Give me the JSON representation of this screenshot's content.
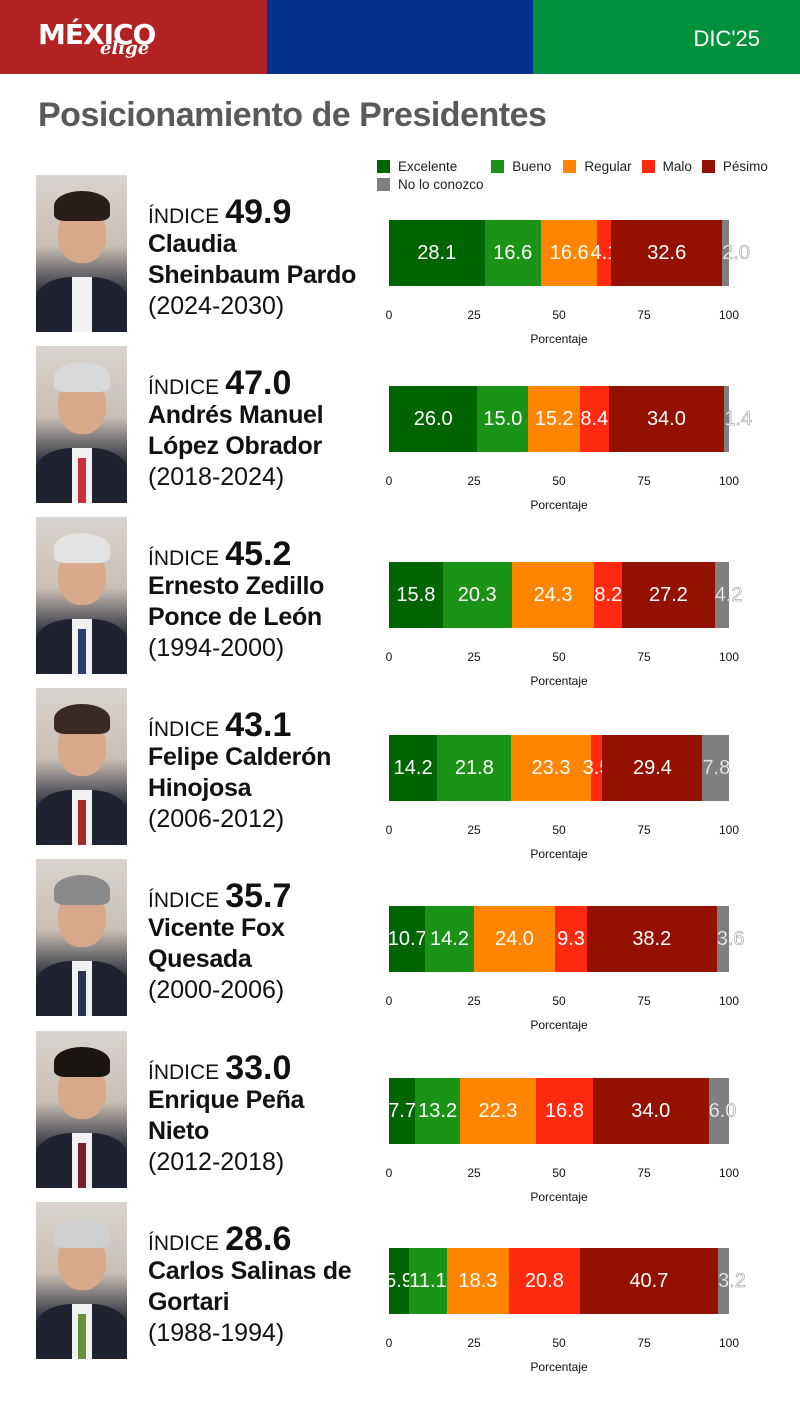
{
  "header": {
    "logo_main": "MÉXICO",
    "logo_sub": "elige",
    "date": "DIC'25",
    "colors": {
      "red": "#b22222",
      "blue": "#06328f",
      "green": "#00913f"
    }
  },
  "page_title": "Posicionamiento de Presidentes",
  "legend": [
    {
      "label": "Excelente",
      "color": "#006400"
    },
    {
      "label": "Bueno",
      "color": "#1a9317"
    },
    {
      "label": "Regular",
      "color": "#ff8400"
    },
    {
      "label": "Malo",
      "color": "#ff2a0f"
    },
    {
      "label": "Pésimo",
      "color": "#941100"
    },
    {
      "label": "No lo conozco",
      "color": "#7f7f7f"
    }
  ],
  "index_label": "ÍNDICE",
  "axis": {
    "ticks": [
      "0",
      "25",
      "50",
      "75",
      "100"
    ],
    "title": "Porcentaje"
  },
  "presidents": [
    {
      "index": "49.9",
      "name_line1": "Claudia",
      "name_line2": "Sheinbaum Pardo",
      "period": "(2024-2030)",
      "values": [
        28.1,
        16.6,
        16.6,
        4.1,
        32.6,
        2.0
      ]
    },
    {
      "index": "47.0",
      "name_line1": "Andrés Manuel",
      "name_line2": "López Obrador",
      "period": "(2018-2024)",
      "values": [
        26.0,
        15.0,
        15.2,
        8.4,
        34.0,
        1.4
      ]
    },
    {
      "index": "45.2",
      "name_line1": "Ernesto Zedillo",
      "name_line2": "Ponce de León",
      "period": "(1994-2000)",
      "values": [
        15.8,
        20.3,
        24.3,
        8.2,
        27.2,
        4.2
      ]
    },
    {
      "index": "43.1",
      "name_line1": "Felipe Calderón",
      "name_line2": "Hinojosa",
      "period": "(2006-2012)",
      "values": [
        14.2,
        21.8,
        23.3,
        3.5,
        29.4,
        7.8
      ]
    },
    {
      "index": "35.7",
      "name_line1": "Vicente Fox",
      "name_line2": "Quesada",
      "period": "(2000-2006)",
      "values": [
        10.7,
        14.2,
        24.0,
        9.3,
        38.2,
        3.6
      ]
    },
    {
      "index": "33.0",
      "name_line1": "Enrique Peña",
      "name_line2": "Nieto",
      "period": "(2012-2018)",
      "values": [
        7.7,
        13.2,
        22.3,
        16.8,
        34.0,
        6.0
      ]
    },
    {
      "index": "28.6",
      "name_line1": "Carlos Salinas de",
      "name_line2": "Gortari",
      "period": "(1988-1994)",
      "values": [
        5.9,
        11.1,
        18.3,
        20.8,
        40.7,
        3.2
      ]
    }
  ],
  "chart_data": {
    "type": "bar",
    "orientation": "horizontal-stacked-100",
    "title": "Posicionamiento de Presidentes",
    "subtitle": "DIC'25",
    "categories": [
      "Claudia Sheinbaum Pardo (2024-2030)",
      "Andrés Manuel López Obrador (2018-2024)",
      "Ernesto Zedillo Ponce de León (1994-2000)",
      "Felipe Calderón Hinojosa (2006-2012)",
      "Vicente Fox Quesada (2000-2006)",
      "Enrique Peña Nieto (2012-2018)",
      "Carlos Salinas de Gortari (1988-1994)"
    ],
    "index": [
      49.9,
      47.0,
      45.2,
      43.1,
      35.7,
      33.0,
      28.6
    ],
    "series": [
      {
        "name": "Excelente",
        "color": "#006400",
        "values": [
          28.1,
          26.0,
          15.8,
          14.2,
          10.7,
          7.7,
          5.9
        ]
      },
      {
        "name": "Bueno",
        "color": "#1a9317",
        "values": [
          16.6,
          15.0,
          20.3,
          21.8,
          14.2,
          13.2,
          11.1
        ]
      },
      {
        "name": "Regular",
        "color": "#ff8400",
        "values": [
          16.6,
          15.2,
          24.3,
          23.3,
          24.0,
          22.3,
          18.3
        ]
      },
      {
        "name": "Malo",
        "color": "#ff2a0f",
        "values": [
          4.1,
          8.4,
          8.2,
          3.5,
          9.3,
          16.8,
          20.8
        ]
      },
      {
        "name": "Pésimo",
        "color": "#941100",
        "values": [
          32.6,
          34.0,
          27.2,
          29.4,
          38.2,
          34.0,
          40.7
        ]
      },
      {
        "name": "No lo conozco",
        "color": "#7f7f7f",
        "values": [
          2.0,
          1.4,
          4.2,
          7.8,
          3.6,
          6.0,
          3.2
        ]
      }
    ],
    "xlabel": "Porcentaje",
    "ylabel": "",
    "xlim": [
      0,
      100
    ],
    "xticks": [
      0,
      25,
      50,
      75,
      100
    ],
    "legend_position": "top",
    "grid": false
  }
}
